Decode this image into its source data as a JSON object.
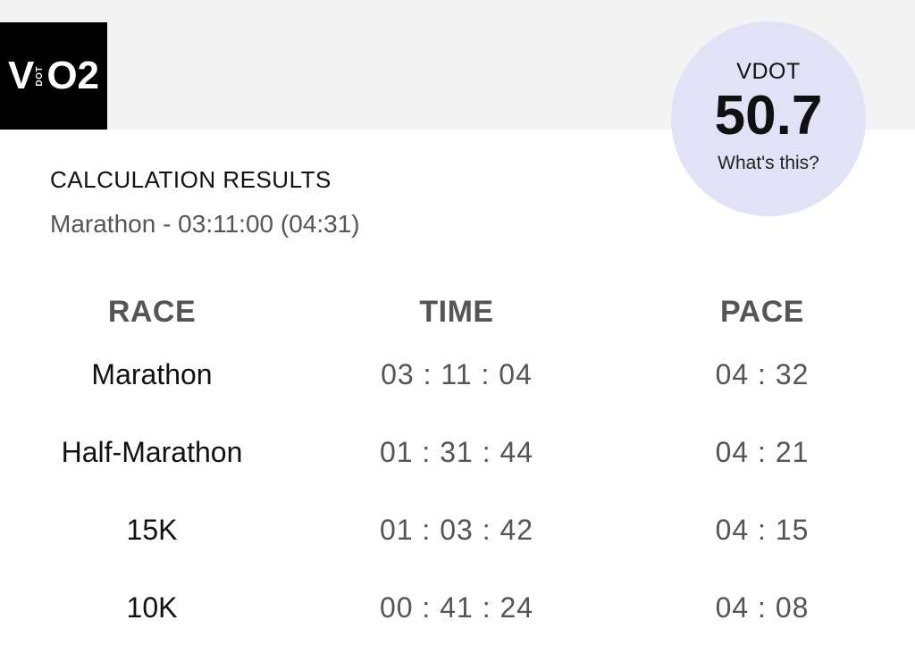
{
  "logo": {
    "v": "V",
    "dot": "DOT",
    "o2": "O2"
  },
  "vdot": {
    "label": "VDOT",
    "value": "50.7",
    "help": "What's this?"
  },
  "results": {
    "title": "CALCULATION RESULTS",
    "subtitle": "Marathon - 03:11:00 (04:31)"
  },
  "table": {
    "headers": [
      "RACE",
      "TIME",
      "PACE"
    ],
    "rows": [
      {
        "race": "Marathon",
        "time": "03 : 11 : 04",
        "pace": "04 : 32"
      },
      {
        "race": "Half-Marathon",
        "time": "01 : 31 : 44",
        "pace": "04 : 21"
      },
      {
        "race": "15K",
        "time": "01 : 03 : 42",
        "pace": "04 : 15"
      },
      {
        "race": "10K",
        "time": "00 : 41 : 24",
        "pace": "04 : 08"
      }
    ]
  },
  "colors": {
    "header_bg": "#f3f3f3",
    "circle_bg": "#e2e2f7",
    "logo_bg": "#000000"
  }
}
